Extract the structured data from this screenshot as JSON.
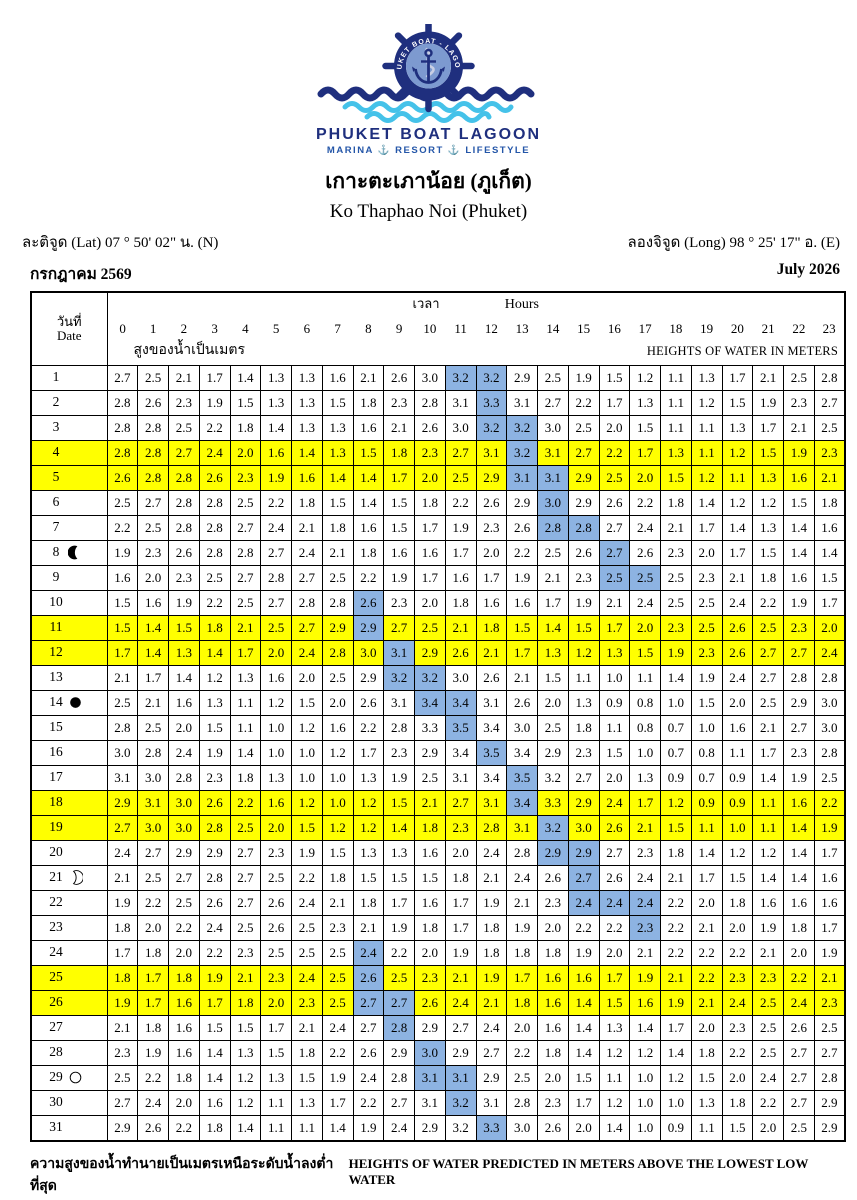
{
  "logo": {
    "wheel_text": "PHUKET BOAT - LAGOON",
    "brand": "PHUKET BOAT LAGOON",
    "tagline": "MARINA ⚓ RESORT ⚓ LIFESTYLE",
    "colors": {
      "navy": "#1f2f7e",
      "light_blue": "#7d9ad0",
      "cyan": "#45c2e9"
    }
  },
  "title": {
    "thai": "เกาะตะเภาน้อย (ภูเก็ต)",
    "english": "Ko Thaphao Noi (Phuket)"
  },
  "coordinates": {
    "latitude": "ละติจูด (Lat) 07 ° 50' 02\" น. (N)",
    "longitude": "ลองจิจูด (Long) 98 ° 25' 17\" อ. (E)"
  },
  "period": {
    "thai": "กรกฎาคม 2569",
    "english": "July 2026"
  },
  "table": {
    "date_label_thai": "วันที่",
    "date_label_eng": "Date",
    "time_label_thai": "เวลา",
    "time_label_eng": "Hours",
    "heights_label_thai": "สูงของน้ำเป็นเมตร",
    "heights_label_eng": "HEIGHTS OF WATER IN METERS",
    "hours": [
      0,
      1,
      2,
      3,
      4,
      5,
      6,
      7,
      8,
      9,
      10,
      11,
      12,
      13,
      14,
      15,
      16,
      17,
      18,
      19,
      20,
      21,
      22,
      23
    ],
    "colors": {
      "weekend_yellow": "#ffff00",
      "hightide_blue": "#8db3e2"
    },
    "moon_phases": {
      "day8": "last-quarter",
      "day14": "new-moon",
      "day21": "first-quarter",
      "day29": "full-moon"
    },
    "rows": [
      {
        "day": 1,
        "moon": null,
        "weekend": false,
        "highlight": [
          11,
          12
        ],
        "values": [
          2.7,
          2.5,
          2.1,
          1.7,
          1.4,
          1.3,
          1.3,
          1.6,
          2.1,
          2.6,
          3.0,
          3.2,
          3.2,
          2.9,
          2.5,
          1.9,
          1.5,
          1.2,
          1.1,
          1.3,
          1.7,
          2.1,
          2.5,
          2.8
        ]
      },
      {
        "day": 2,
        "moon": null,
        "weekend": false,
        "highlight": [
          12
        ],
        "values": [
          2.8,
          2.6,
          2.3,
          1.9,
          1.5,
          1.3,
          1.3,
          1.5,
          1.8,
          2.3,
          2.8,
          3.1,
          3.3,
          3.1,
          2.7,
          2.2,
          1.7,
          1.3,
          1.1,
          1.2,
          1.5,
          1.9,
          2.3,
          2.7
        ]
      },
      {
        "day": 3,
        "moon": null,
        "weekend": false,
        "highlight": [
          12,
          13
        ],
        "values": [
          2.8,
          2.8,
          2.5,
          2.2,
          1.8,
          1.4,
          1.3,
          1.3,
          1.6,
          2.1,
          2.6,
          3.0,
          3.2,
          3.2,
          3.0,
          2.5,
          2.0,
          1.5,
          1.1,
          1.1,
          1.3,
          1.7,
          2.1,
          2.5
        ]
      },
      {
        "day": 4,
        "moon": null,
        "weekend": true,
        "highlight": [
          13
        ],
        "values": [
          2.8,
          2.8,
          2.7,
          2.4,
          2.0,
          1.6,
          1.4,
          1.3,
          1.5,
          1.8,
          2.3,
          2.7,
          3.1,
          3.2,
          3.1,
          2.7,
          2.2,
          1.7,
          1.3,
          1.1,
          1.2,
          1.5,
          1.9,
          2.3
        ]
      },
      {
        "day": 5,
        "moon": null,
        "weekend": true,
        "highlight": [
          13,
          14
        ],
        "values": [
          2.6,
          2.8,
          2.8,
          2.6,
          2.3,
          1.9,
          1.6,
          1.4,
          1.4,
          1.7,
          2.0,
          2.5,
          2.9,
          3.1,
          3.1,
          2.9,
          2.5,
          2.0,
          1.5,
          1.2,
          1.1,
          1.3,
          1.6,
          2.1
        ]
      },
      {
        "day": 6,
        "moon": null,
        "weekend": false,
        "highlight": [
          14
        ],
        "values": [
          2.5,
          2.7,
          2.8,
          2.8,
          2.5,
          2.2,
          1.8,
          1.5,
          1.4,
          1.5,
          1.8,
          2.2,
          2.6,
          2.9,
          3.0,
          2.9,
          2.6,
          2.2,
          1.8,
          1.4,
          1.2,
          1.2,
          1.5,
          1.8
        ]
      },
      {
        "day": 7,
        "moon": null,
        "weekend": false,
        "highlight": [
          14,
          15
        ],
        "values": [
          2.2,
          2.5,
          2.8,
          2.8,
          2.7,
          2.4,
          2.1,
          1.8,
          1.6,
          1.5,
          1.7,
          1.9,
          2.3,
          2.6,
          2.8,
          2.8,
          2.7,
          2.4,
          2.1,
          1.7,
          1.4,
          1.3,
          1.4,
          1.6
        ]
      },
      {
        "day": 8,
        "moon": "last-quarter",
        "weekend": false,
        "highlight": [
          16
        ],
        "values": [
          1.9,
          2.3,
          2.6,
          2.8,
          2.8,
          2.7,
          2.4,
          2.1,
          1.8,
          1.6,
          1.6,
          1.7,
          2.0,
          2.2,
          2.5,
          2.6,
          2.7,
          2.6,
          2.3,
          2.0,
          1.7,
          1.5,
          1.4,
          1.4
        ]
      },
      {
        "day": 9,
        "moon": null,
        "weekend": false,
        "highlight": [
          16,
          17
        ],
        "values": [
          1.6,
          2.0,
          2.3,
          2.5,
          2.7,
          2.8,
          2.7,
          2.5,
          2.2,
          1.9,
          1.7,
          1.6,
          1.7,
          1.9,
          2.1,
          2.3,
          2.5,
          2.5,
          2.5,
          2.3,
          2.1,
          1.8,
          1.6,
          1.5
        ]
      },
      {
        "day": 10,
        "moon": null,
        "weekend": false,
        "highlight": [
          8
        ],
        "values": [
          1.5,
          1.6,
          1.9,
          2.2,
          2.5,
          2.7,
          2.8,
          2.8,
          2.6,
          2.3,
          2.0,
          1.8,
          1.6,
          1.6,
          1.7,
          1.9,
          2.1,
          2.4,
          2.5,
          2.5,
          2.4,
          2.2,
          1.9,
          1.7
        ]
      },
      {
        "day": 11,
        "moon": null,
        "weekend": true,
        "highlight": [
          8
        ],
        "values": [
          1.5,
          1.4,
          1.5,
          1.8,
          2.1,
          2.5,
          2.7,
          2.9,
          2.9,
          2.7,
          2.5,
          2.1,
          1.8,
          1.5,
          1.4,
          1.5,
          1.7,
          2.0,
          2.3,
          2.5,
          2.6,
          2.5,
          2.3,
          2.0
        ]
      },
      {
        "day": 12,
        "moon": null,
        "weekend": true,
        "highlight": [
          9
        ],
        "values": [
          1.7,
          1.4,
          1.3,
          1.4,
          1.7,
          2.0,
          2.4,
          2.8,
          3.0,
          3.1,
          2.9,
          2.6,
          2.1,
          1.7,
          1.3,
          1.2,
          1.3,
          1.5,
          1.9,
          2.3,
          2.6,
          2.7,
          2.7,
          2.4
        ]
      },
      {
        "day": 13,
        "moon": null,
        "weekend": false,
        "highlight": [
          9,
          10
        ],
        "values": [
          2.1,
          1.7,
          1.4,
          1.2,
          1.3,
          1.6,
          2.0,
          2.5,
          2.9,
          3.2,
          3.2,
          3.0,
          2.6,
          2.1,
          1.5,
          1.1,
          1.0,
          1.1,
          1.4,
          1.9,
          2.4,
          2.7,
          2.8,
          2.8
        ]
      },
      {
        "day": 14,
        "moon": "new-moon",
        "weekend": false,
        "highlight": [
          10,
          11
        ],
        "values": [
          2.5,
          2.1,
          1.6,
          1.3,
          1.1,
          1.2,
          1.5,
          2.0,
          2.6,
          3.1,
          3.4,
          3.4,
          3.1,
          2.6,
          2.0,
          1.3,
          0.9,
          0.8,
          1.0,
          1.5,
          2.0,
          2.5,
          2.9,
          3.0
        ]
      },
      {
        "day": 15,
        "moon": null,
        "weekend": false,
        "highlight": [
          11
        ],
        "values": [
          2.8,
          2.5,
          2.0,
          1.5,
          1.1,
          1.0,
          1.2,
          1.6,
          2.2,
          2.8,
          3.3,
          3.5,
          3.4,
          3.0,
          2.5,
          1.8,
          1.1,
          0.8,
          0.7,
          1.0,
          1.6,
          2.1,
          2.7,
          3.0
        ]
      },
      {
        "day": 16,
        "moon": null,
        "weekend": false,
        "highlight": [
          12
        ],
        "values": [
          3.0,
          2.8,
          2.4,
          1.9,
          1.4,
          1.0,
          1.0,
          1.2,
          1.7,
          2.3,
          2.9,
          3.4,
          3.5,
          3.4,
          2.9,
          2.3,
          1.5,
          1.0,
          0.7,
          0.8,
          1.1,
          1.7,
          2.3,
          2.8
        ]
      },
      {
        "day": 17,
        "moon": null,
        "weekend": false,
        "highlight": [
          13
        ],
        "values": [
          3.1,
          3.0,
          2.8,
          2.3,
          1.8,
          1.3,
          1.0,
          1.0,
          1.3,
          1.9,
          2.5,
          3.1,
          3.4,
          3.5,
          3.2,
          2.7,
          2.0,
          1.3,
          0.9,
          0.7,
          0.9,
          1.4,
          1.9,
          2.5
        ]
      },
      {
        "day": 18,
        "moon": null,
        "weekend": true,
        "highlight": [
          13
        ],
        "values": [
          2.9,
          3.1,
          3.0,
          2.6,
          2.2,
          1.6,
          1.2,
          1.0,
          1.2,
          1.5,
          2.1,
          2.7,
          3.1,
          3.4,
          3.3,
          2.9,
          2.4,
          1.7,
          1.2,
          0.9,
          0.9,
          1.1,
          1.6,
          2.2
        ]
      },
      {
        "day": 19,
        "moon": null,
        "weekend": true,
        "highlight": [
          14
        ],
        "values": [
          2.7,
          3.0,
          3.0,
          2.8,
          2.5,
          2.0,
          1.5,
          1.2,
          1.2,
          1.4,
          1.8,
          2.3,
          2.8,
          3.1,
          3.2,
          3.0,
          2.6,
          2.1,
          1.5,
          1.1,
          1.0,
          1.1,
          1.4,
          1.9
        ]
      },
      {
        "day": 20,
        "moon": null,
        "weekend": false,
        "highlight": [
          14,
          15
        ],
        "values": [
          2.4,
          2.7,
          2.9,
          2.9,
          2.7,
          2.3,
          1.9,
          1.5,
          1.3,
          1.3,
          1.6,
          2.0,
          2.4,
          2.8,
          2.9,
          2.9,
          2.7,
          2.3,
          1.8,
          1.4,
          1.2,
          1.2,
          1.4,
          1.7
        ]
      },
      {
        "day": 21,
        "moon": "first-quarter",
        "weekend": false,
        "highlight": [
          15
        ],
        "values": [
          2.1,
          2.5,
          2.7,
          2.8,
          2.7,
          2.5,
          2.2,
          1.8,
          1.5,
          1.5,
          1.5,
          1.8,
          2.1,
          2.4,
          2.6,
          2.7,
          2.6,
          2.4,
          2.1,
          1.7,
          1.5,
          1.4,
          1.4,
          1.6
        ]
      },
      {
        "day": 22,
        "moon": null,
        "weekend": false,
        "highlight": [
          15,
          16,
          17
        ],
        "values": [
          1.9,
          2.2,
          2.5,
          2.6,
          2.7,
          2.6,
          2.4,
          2.1,
          1.8,
          1.7,
          1.6,
          1.7,
          1.9,
          2.1,
          2.3,
          2.4,
          2.4,
          2.4,
          2.2,
          2.0,
          1.8,
          1.6,
          1.6,
          1.6
        ]
      },
      {
        "day": 23,
        "moon": null,
        "weekend": false,
        "highlight": [
          17
        ],
        "values": [
          1.8,
          2.0,
          2.2,
          2.4,
          2.5,
          2.6,
          2.5,
          2.3,
          2.1,
          1.9,
          1.8,
          1.7,
          1.8,
          1.9,
          2.0,
          2.2,
          2.2,
          2.3,
          2.2,
          2.1,
          2.0,
          1.9,
          1.8,
          1.7
        ]
      },
      {
        "day": 24,
        "moon": null,
        "weekend": false,
        "highlight": [
          8
        ],
        "values": [
          1.7,
          1.8,
          2.0,
          2.2,
          2.3,
          2.5,
          2.5,
          2.5,
          2.4,
          2.2,
          2.0,
          1.9,
          1.8,
          1.8,
          1.8,
          1.9,
          2.0,
          2.1,
          2.2,
          2.2,
          2.2,
          2.1,
          2.0,
          1.9
        ]
      },
      {
        "day": 25,
        "moon": null,
        "weekend": true,
        "highlight": [
          8
        ],
        "values": [
          1.8,
          1.7,
          1.8,
          1.9,
          2.1,
          2.3,
          2.4,
          2.5,
          2.6,
          2.5,
          2.3,
          2.1,
          1.9,
          1.7,
          1.6,
          1.6,
          1.7,
          1.9,
          2.1,
          2.2,
          2.3,
          2.3,
          2.2,
          2.1
        ]
      },
      {
        "day": 26,
        "moon": null,
        "weekend": true,
        "highlight": [
          8,
          9
        ],
        "values": [
          1.9,
          1.7,
          1.6,
          1.7,
          1.8,
          2.0,
          2.3,
          2.5,
          2.7,
          2.7,
          2.6,
          2.4,
          2.1,
          1.8,
          1.6,
          1.4,
          1.5,
          1.6,
          1.9,
          2.1,
          2.4,
          2.5,
          2.4,
          2.3
        ]
      },
      {
        "day": 27,
        "moon": null,
        "weekend": false,
        "highlight": [
          9
        ],
        "values": [
          2.1,
          1.8,
          1.6,
          1.5,
          1.5,
          1.7,
          2.1,
          2.4,
          2.7,
          2.8,
          2.9,
          2.7,
          2.4,
          2.0,
          1.6,
          1.4,
          1.3,
          1.4,
          1.7,
          2.0,
          2.3,
          2.5,
          2.6,
          2.5
        ]
      },
      {
        "day": 28,
        "moon": null,
        "weekend": false,
        "highlight": [
          10
        ],
        "values": [
          2.3,
          1.9,
          1.6,
          1.4,
          1.3,
          1.5,
          1.8,
          2.2,
          2.6,
          2.9,
          3.0,
          2.9,
          2.7,
          2.2,
          1.8,
          1.4,
          1.2,
          1.2,
          1.4,
          1.8,
          2.2,
          2.5,
          2.7,
          2.7
        ]
      },
      {
        "day": 29,
        "moon": "full-moon",
        "weekend": false,
        "highlight": [
          10,
          11
        ],
        "values": [
          2.5,
          2.2,
          1.8,
          1.4,
          1.2,
          1.3,
          1.5,
          1.9,
          2.4,
          2.8,
          3.1,
          3.1,
          2.9,
          2.5,
          2.0,
          1.5,
          1.1,
          1.0,
          1.2,
          1.5,
          2.0,
          2.4,
          2.7,
          2.8
        ]
      },
      {
        "day": 30,
        "moon": null,
        "weekend": false,
        "highlight": [
          11
        ],
        "values": [
          2.7,
          2.4,
          2.0,
          1.6,
          1.2,
          1.1,
          1.3,
          1.7,
          2.2,
          2.7,
          3.1,
          3.2,
          3.1,
          2.8,
          2.3,
          1.7,
          1.2,
          1.0,
          1.0,
          1.3,
          1.8,
          2.2,
          2.7,
          2.9
        ]
      },
      {
        "day": 31,
        "moon": null,
        "weekend": false,
        "highlight": [
          12
        ],
        "values": [
          2.9,
          2.6,
          2.2,
          1.8,
          1.4,
          1.1,
          1.1,
          1.4,
          1.9,
          2.4,
          2.9,
          3.2,
          3.3,
          3.0,
          2.6,
          2.0,
          1.4,
          1.0,
          0.9,
          1.1,
          1.5,
          2.0,
          2.5,
          2.9
        ]
      }
    ]
  },
  "footer": {
    "thai": "ความสูงของน้ำทำนายเป็นเมตรเหนือระดับน้ำลงต่ำที่สุด",
    "english": "HEIGHTS OF WATER PREDICTED IN METERS ABOVE THE LOWEST LOW WATER"
  }
}
